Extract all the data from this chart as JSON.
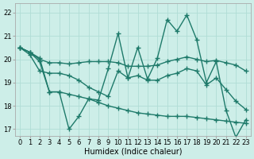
{
  "xlabel": "Humidex (Indice chaleur)",
  "xlim": [
    -0.5,
    23.5
  ],
  "ylim": [
    16.7,
    22.4
  ],
  "xticks": [
    0,
    1,
    2,
    3,
    4,
    5,
    6,
    7,
    8,
    9,
    10,
    11,
    12,
    13,
    14,
    15,
    16,
    17,
    18,
    19,
    20,
    21,
    22,
    23
  ],
  "yticks": [
    17,
    18,
    19,
    20,
    21,
    22
  ],
  "bg_color": "#cdeee8",
  "grid_color": "#b0ddd5",
  "line_color": "#1e7a6a",
  "line1_x": [
    0,
    1,
    2,
    3,
    4,
    5,
    6,
    7,
    8,
    9,
    10,
    11,
    12,
    13,
    14,
    15,
    16,
    17,
    18,
    19,
    20,
    21,
    22,
    23
  ],
  "line1_y": [
    20.5,
    20.3,
    20.05,
    18.6,
    18.6,
    17.0,
    17.55,
    18.3,
    18.25,
    19.6,
    21.1,
    19.2,
    20.5,
    19.15,
    20.05,
    21.7,
    21.2,
    21.9,
    20.85,
    19.0,
    19.9,
    17.8,
    16.65,
    17.4
  ],
  "line2_x": [
    0,
    1,
    2,
    3,
    4,
    5,
    6,
    7,
    8,
    9,
    10,
    11,
    12,
    13,
    14,
    15,
    16,
    17,
    18,
    19,
    20,
    21,
    22,
    23
  ],
  "line2_y": [
    20.5,
    20.3,
    20.0,
    19.85,
    19.85,
    19.8,
    19.85,
    19.9,
    19.9,
    19.9,
    19.85,
    19.7,
    19.7,
    19.7,
    19.75,
    19.9,
    20.0,
    20.1,
    20.0,
    19.9,
    19.95,
    19.85,
    19.75,
    19.5
  ],
  "line3_x": [
    0,
    1,
    2,
    3,
    4,
    5,
    6,
    7,
    8,
    9,
    10,
    11,
    12,
    13,
    14,
    15,
    16,
    17,
    18,
    19,
    20,
    21,
    22,
    23
  ],
  "line3_y": [
    20.5,
    20.2,
    19.5,
    19.4,
    19.4,
    19.3,
    19.1,
    18.8,
    18.6,
    18.4,
    19.5,
    19.2,
    19.3,
    19.1,
    19.1,
    19.3,
    19.4,
    19.6,
    19.5,
    18.9,
    19.2,
    18.7,
    18.2,
    17.85
  ],
  "line4_x": [
    0,
    1,
    2,
    3,
    4,
    5,
    6,
    7,
    8,
    9,
    10,
    11,
    12,
    13,
    14,
    15,
    16,
    17,
    18,
    19,
    20,
    21,
    22,
    23
  ],
  "line4_y": [
    20.5,
    20.3,
    19.9,
    18.6,
    18.6,
    18.5,
    18.4,
    18.3,
    18.15,
    18.0,
    17.9,
    17.8,
    17.7,
    17.65,
    17.6,
    17.55,
    17.55,
    17.55,
    17.5,
    17.45,
    17.4,
    17.35,
    17.3,
    17.25
  ],
  "marker": "+",
  "marker_size": 4,
  "linewidth": 1.0,
  "fontsize_label": 7,
  "fontsize_tick": 6
}
